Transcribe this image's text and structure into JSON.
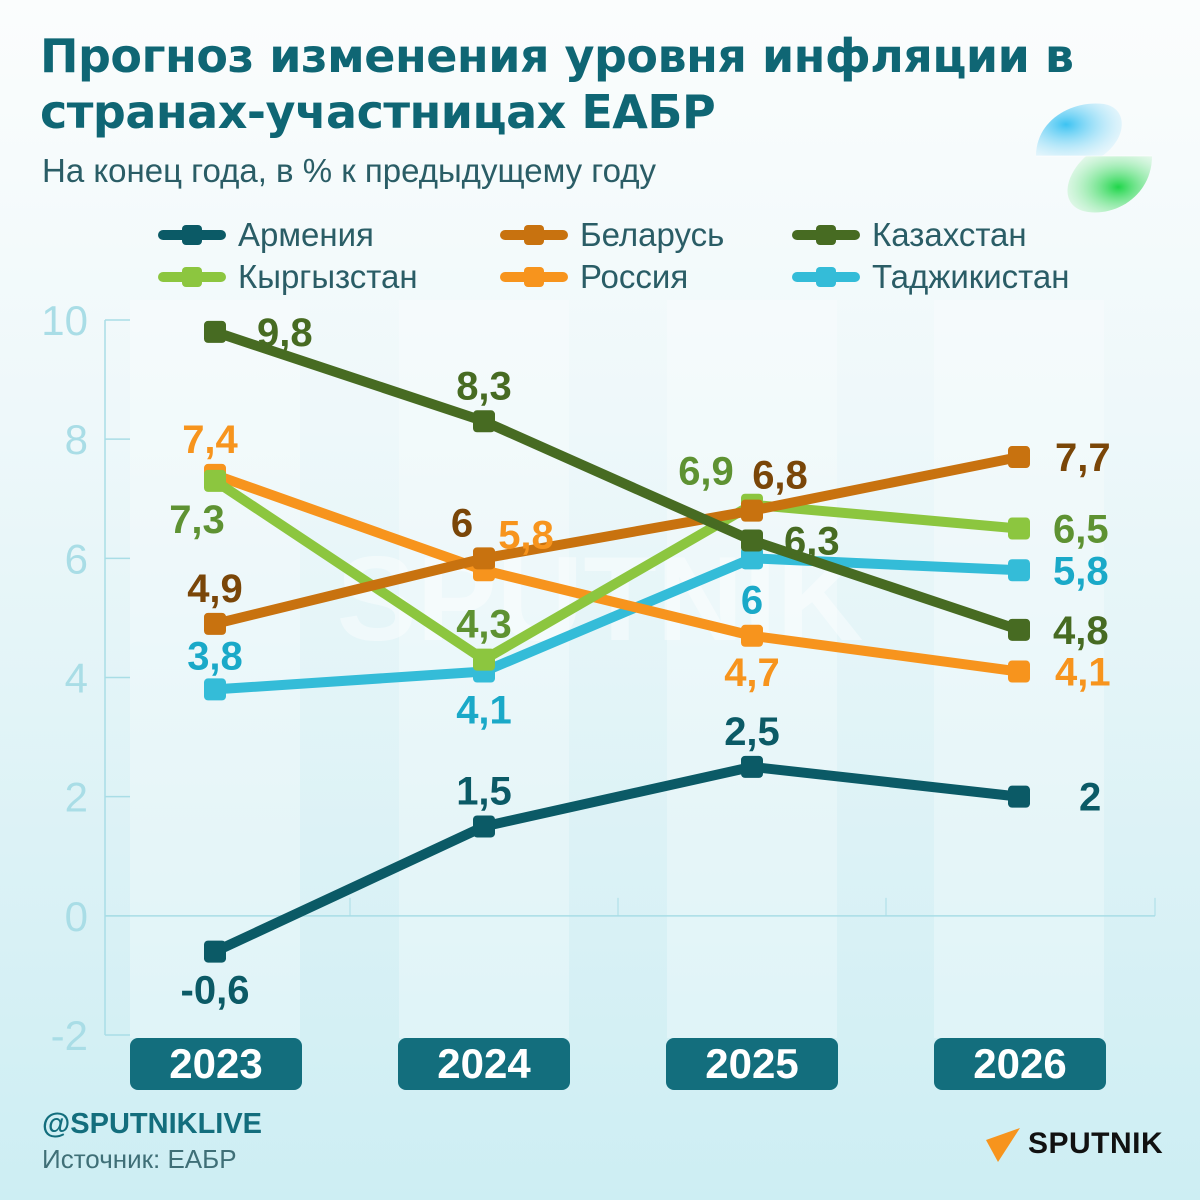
{
  "header": {
    "title": "Прогноз изменения уровня инфляции в странах-участницах ЕАБР",
    "subtitle": "На конец года, в % к предыдущему году"
  },
  "footer": {
    "handle": "@SPUTNIKLIVE",
    "source": "Источник: ЕАБР",
    "brand": "SPUTNIK",
    "watermark": "SPUTNIK"
  },
  "chart_data": {
    "type": "line",
    "title": "Прогноз изменения уровня инфляции в странах-участницах ЕАБР",
    "subtitle": "На конец года, в % к предыдущему году",
    "xlabel": "",
    "ylabel": "",
    "categories": [
      "2023",
      "2024",
      "2025",
      "2026"
    ],
    "ylim": [
      -2,
      10
    ],
    "yticks": [
      -2,
      0,
      2,
      4,
      6,
      8,
      10
    ],
    "ytick_labels": [
      "-2",
      "0",
      "2",
      "4",
      "6",
      "8",
      "10"
    ],
    "grid": false,
    "legend_position": "top",
    "series": [
      {
        "name": "Армения",
        "color": "#0b5a66",
        "label_color": "#0b5a66",
        "values": [
          -0.6,
          1.5,
          2.5,
          2
        ],
        "labels": [
          "-0,6",
          "1,5",
          "2,5",
          "2"
        ]
      },
      {
        "name": "Беларусь",
        "color": "#c8720f",
        "label_color": "#7a4608",
        "values": [
          4.9,
          6,
          6.8,
          7.7
        ],
        "labels": [
          "4,9",
          "6",
          "6,8",
          "7,7"
        ]
      },
      {
        "name": "Казахстан",
        "color": "#476b22",
        "label_color": "#476b22",
        "values": [
          9.8,
          8.3,
          6.3,
          4.8
        ],
        "labels": [
          "9,8",
          "8,3",
          "6,3",
          "4,8"
        ]
      },
      {
        "name": "Кыргызстан",
        "color": "#8cc63f",
        "label_color": "#5e9232",
        "values": [
          7.3,
          4.3,
          6.9,
          6.5
        ],
        "labels": [
          "7,3",
          "4,3",
          "6,9",
          "6,5"
        ]
      },
      {
        "name": "Россия",
        "color": "#f7941d",
        "label_color": "#f7941d",
        "values": [
          7.4,
          5.8,
          4.7,
          4.1
        ],
        "labels": [
          "7,4",
          "5,8",
          "4,7",
          "4,1"
        ]
      },
      {
        "name": "Таджикистан",
        "color": "#34bcd8",
        "label_color": "#1aa9c8",
        "values": [
          3.8,
          4.1,
          6,
          5.8
        ],
        "labels": [
          "3,8",
          "4,1",
          "6",
          "5,8"
        ]
      }
    ]
  }
}
